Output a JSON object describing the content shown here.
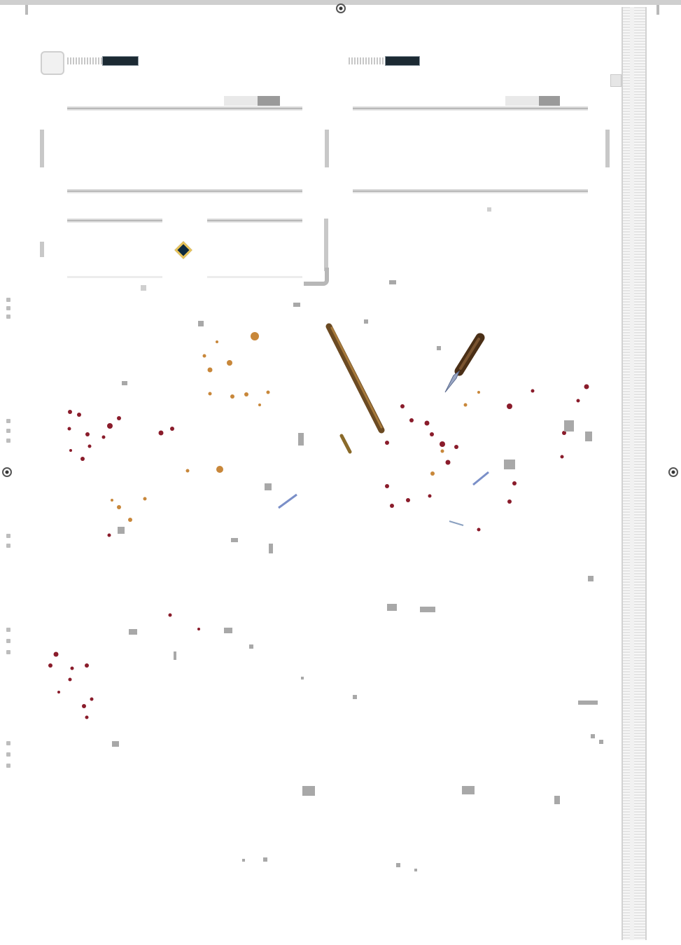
{
  "header": {
    "left_label": "",
    "right_label": ""
  },
  "tags": {
    "left_code": "",
    "right_code": ""
  },
  "colors": {
    "dark_panel": "#1c2a33",
    "accent_gold": "#e8c35a",
    "rule_gray": "#b8b8b8",
    "speck_red": "#8a1c2b",
    "speck_orange": "#c8873a",
    "speck_blue": "#7a8fc8"
  },
  "icons": {
    "reg_mark": "registration-target-icon",
    "diamond": "diamond-icon",
    "pen": "pen-icon",
    "knife": "knife-icon"
  }
}
